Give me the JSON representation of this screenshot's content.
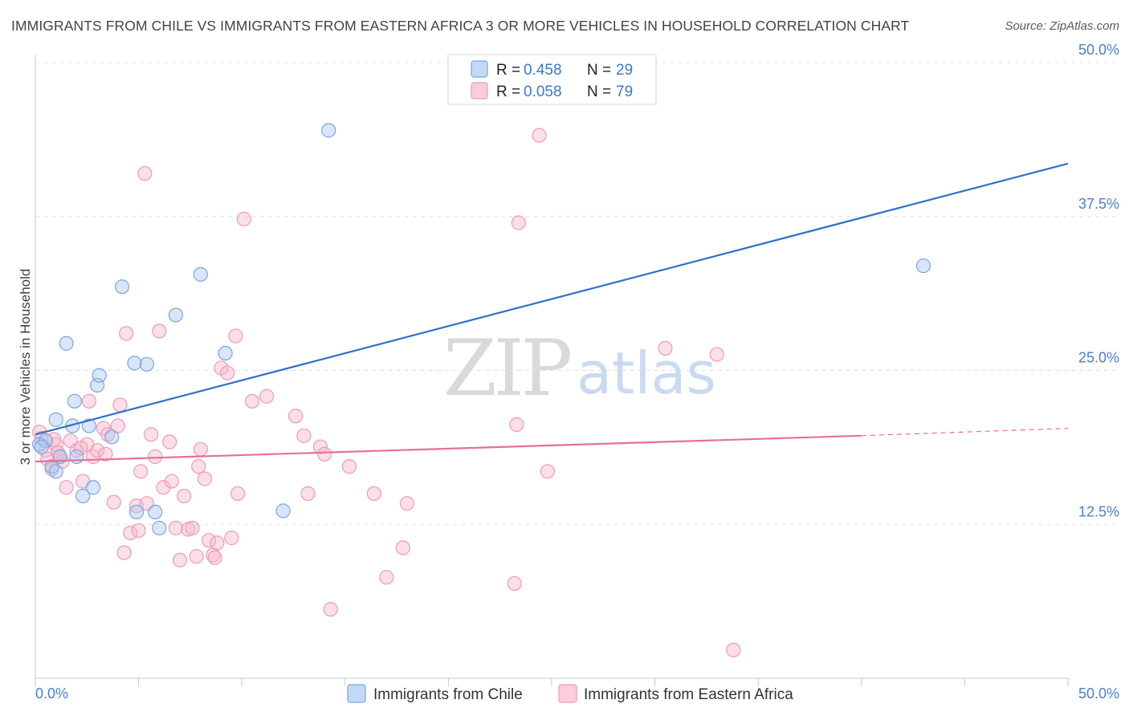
{
  "title": "IMMIGRANTS FROM CHILE VS IMMIGRANTS FROM EASTERN AFRICA 3 OR MORE VEHICLES IN HOUSEHOLD CORRELATION CHART",
  "source": "Source: ZipAtlas.com",
  "watermark": {
    "part1": "ZIP",
    "part2": "atlas"
  },
  "legend": {
    "series": [
      {
        "name": "Immigrants from Chile",
        "r_label": "R =",
        "r_value": "0.458",
        "n_label": "N =",
        "n_value": "29"
      },
      {
        "name": "Immigrants from Eastern Africa",
        "r_label": "R =",
        "r_value": "0.058",
        "n_label": "N =",
        "n_value": "79"
      }
    ]
  },
  "colors": {
    "chile_fill": "#a8c7f0",
    "chile_stroke": "#7aa6e0",
    "chile_line": "#2f6fcc",
    "africa_fill": "#f7b8cb",
    "africa_stroke": "#ef9ab4",
    "africa_line": "#e4709a",
    "grid": "#dfe1e4",
    "axis_text": "#4a7fcc"
  },
  "chart_data": {
    "type": "scatter",
    "title": "IMMIGRANTS FROM CHILE VS IMMIGRANTS FROM EASTERN AFRICA 3 OR MORE VEHICLES IN HOUSEHOLD CORRELATION CHART",
    "xlabel": "",
    "ylabel": "3 or more Vehicles in Household",
    "xlim": [
      0,
      50
    ],
    "ylim": [
      0,
      50
    ],
    "x_tick_labels": [
      "0.0%",
      "50.0%"
    ],
    "y_ticks": [
      12.5,
      25.0,
      37.5,
      50.0
    ],
    "y_tick_labels": [
      "12.5%",
      "25.0%",
      "37.5%",
      "50.0%"
    ],
    "grid": true,
    "series": [
      {
        "name": "Immigrants from Chile",
        "points": [
          [
            0.2,
            19.0
          ],
          [
            0.5,
            19.3
          ],
          [
            0.8,
            17.2
          ],
          [
            1.0,
            21.0
          ],
          [
            1.0,
            16.8
          ],
          [
            1.2,
            18.0
          ],
          [
            1.5,
            27.2
          ],
          [
            1.8,
            20.5
          ],
          [
            1.9,
            22.5
          ],
          [
            2.0,
            18.0
          ],
          [
            2.3,
            14.8
          ],
          [
            2.6,
            20.5
          ],
          [
            2.8,
            15.5
          ],
          [
            3.0,
            23.8
          ],
          [
            3.1,
            24.6
          ],
          [
            3.7,
            19.6
          ],
          [
            4.2,
            31.8
          ],
          [
            4.9,
            13.5
          ],
          [
            4.8,
            25.6
          ],
          [
            5.4,
            25.5
          ],
          [
            5.8,
            13.5
          ],
          [
            6.0,
            12.2
          ],
          [
            6.8,
            29.5
          ],
          [
            8.0,
            32.8
          ],
          [
            9.2,
            26.4
          ],
          [
            12.0,
            13.6
          ],
          [
            14.2,
            44.5
          ],
          [
            43.0,
            33.5
          ],
          [
            0.3,
            18.8
          ]
        ],
        "trend": {
          "x": [
            0,
            50
          ],
          "y": [
            19.8,
            41.8
          ]
        }
      },
      {
        "name": "Immigrants from Eastern Africa",
        "points": [
          [
            0.2,
            20.0
          ],
          [
            0.3,
            19.5
          ],
          [
            0.5,
            18.5
          ],
          [
            0.6,
            17.8
          ],
          [
            0.8,
            17.0
          ],
          [
            1.0,
            19.0
          ],
          [
            1.1,
            18.3
          ],
          [
            1.3,
            17.6
          ],
          [
            1.5,
            15.5
          ],
          [
            1.7,
            19.3
          ],
          [
            2.0,
            18.5
          ],
          [
            2.3,
            16.0
          ],
          [
            2.5,
            19.0
          ],
          [
            2.6,
            22.5
          ],
          [
            2.8,
            18.0
          ],
          [
            3.0,
            18.5
          ],
          [
            3.3,
            20.3
          ],
          [
            3.5,
            19.8
          ],
          [
            3.8,
            14.3
          ],
          [
            4.0,
            20.5
          ],
          [
            4.1,
            22.2
          ],
          [
            4.3,
            10.2
          ],
          [
            4.4,
            28.0
          ],
          [
            4.6,
            11.8
          ],
          [
            4.9,
            14.0
          ],
          [
            5.0,
            12.0
          ],
          [
            5.1,
            16.8
          ],
          [
            5.3,
            41.0
          ],
          [
            5.4,
            14.2
          ],
          [
            5.6,
            19.8
          ],
          [
            5.8,
            18.0
          ],
          [
            6.0,
            28.2
          ],
          [
            6.2,
            15.5
          ],
          [
            6.5,
            19.2
          ],
          [
            6.6,
            16.0
          ],
          [
            6.8,
            12.2
          ],
          [
            7.0,
            9.6
          ],
          [
            7.2,
            14.8
          ],
          [
            7.4,
            12.1
          ],
          [
            7.6,
            12.2
          ],
          [
            7.8,
            9.9
          ],
          [
            7.9,
            17.2
          ],
          [
            8.0,
            18.6
          ],
          [
            8.2,
            16.2
          ],
          [
            8.4,
            11.2
          ],
          [
            8.6,
            10.0
          ],
          [
            8.7,
            9.8
          ],
          [
            8.8,
            11.0
          ],
          [
            9.0,
            25.2
          ],
          [
            9.3,
            24.8
          ],
          [
            9.5,
            11.4
          ],
          [
            9.7,
            27.8
          ],
          [
            9.8,
            15.0
          ],
          [
            10.1,
            37.3
          ],
          [
            10.5,
            22.5
          ],
          [
            11.2,
            22.9
          ],
          [
            12.6,
            21.3
          ],
          [
            13.0,
            19.7
          ],
          [
            13.2,
            15.0
          ],
          [
            13.8,
            18.8
          ],
          [
            14.0,
            18.2
          ],
          [
            14.3,
            5.6
          ],
          [
            15.2,
            17.2
          ],
          [
            16.4,
            15.0
          ],
          [
            17.0,
            8.2
          ],
          [
            17.8,
            10.6
          ],
          [
            18.0,
            14.2
          ],
          [
            23.2,
            7.7
          ],
          [
            23.3,
            20.6
          ],
          [
            23.4,
            37.0
          ],
          [
            24.4,
            44.1
          ],
          [
            24.8,
            16.8
          ],
          [
            30.5,
            26.8
          ],
          [
            33.0,
            26.3
          ],
          [
            33.8,
            2.3
          ],
          [
            1.2,
            18.0
          ],
          [
            2.2,
            18.7
          ],
          [
            3.4,
            18.2
          ],
          [
            0.9,
            19.4
          ]
        ],
        "trend": {
          "x": [
            0,
            40
          ],
          "y": [
            17.6,
            19.7
          ]
        },
        "trend_dashed": {
          "x": [
            40,
            50
          ],
          "y": [
            19.7,
            20.3
          ]
        }
      }
    ]
  }
}
